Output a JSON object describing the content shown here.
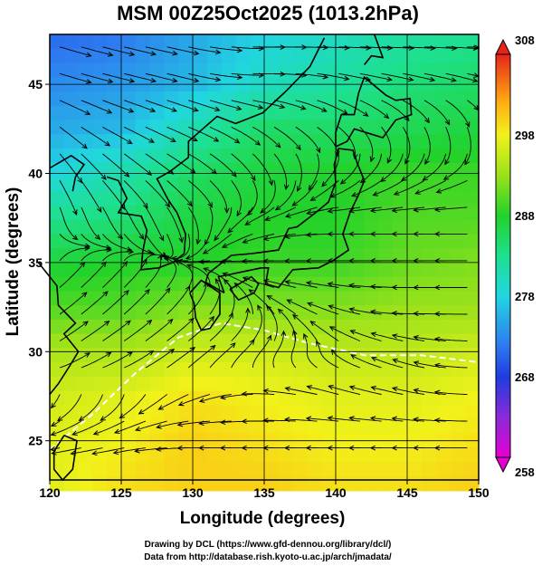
{
  "chart_data": {
    "type": "heatmap",
    "title": "MSM 00Z25Oct2025 (1013.2hPa)",
    "xlabel": "Longitude (degrees)",
    "ylabel": "Latitude  (degrees)",
    "xlim": [
      120,
      150
    ],
    "ylim": [
      22.8,
      47.8
    ],
    "x_ticks": [
      120,
      125,
      130,
      135,
      140,
      145,
      150
    ],
    "y_ticks": [
      25,
      30,
      35,
      40,
      45
    ],
    "grid": true,
    "colorbar": {
      "min": 258,
      "max": 308,
      "tick_values": [
        258,
        268,
        278,
        288,
        298,
        308
      ],
      "tick_labels": [
        "258",
        "268",
        "278",
        "288",
        "298",
        "308"
      ],
      "stops": [
        {
          "v": 258,
          "color": "#e600d2"
        },
        {
          "v": 263,
          "color": "#8a2ad8"
        },
        {
          "v": 268,
          "color": "#1f3ce0"
        },
        {
          "v": 272,
          "color": "#2e7cf0"
        },
        {
          "v": 278,
          "color": "#21d6e0"
        },
        {
          "v": 283,
          "color": "#1ee08e"
        },
        {
          "v": 288,
          "color": "#22d22a"
        },
        {
          "v": 293,
          "color": "#9ae21a"
        },
        {
          "v": 298,
          "color": "#f2f21a"
        },
        {
          "v": 302,
          "color": "#ffae12"
        },
        {
          "v": 308,
          "color": "#e8241a"
        }
      ]
    },
    "temperature_field_K": {
      "note_units": "K",
      "lon": [
        120,
        125,
        130,
        135,
        140,
        145,
        150
      ],
      "lat": [
        47.5,
        45,
        42.5,
        40,
        37.5,
        35,
        32.5,
        30,
        27.5,
        25,
        22.8
      ],
      "values": [
        [
          271,
          272,
          275,
          278,
          280,
          282,
          283
        ],
        [
          273,
          274,
          276,
          280,
          282,
          284,
          285
        ],
        [
          275,
          276,
          281,
          285,
          285,
          286,
          287
        ],
        [
          278,
          281,
          285,
          287,
          288,
          289,
          289
        ],
        [
          283,
          284,
          287,
          288,
          288,
          290,
          290
        ],
        [
          287,
          288,
          288,
          289,
          289,
          291,
          292
        ],
        [
          290,
          290,
          292,
          292,
          292,
          293,
          293
        ],
        [
          294,
          294,
          296,
          296,
          295,
          295,
          296
        ],
        [
          296,
          297,
          299,
          298,
          297,
          297,
          298
        ],
        [
          297,
          298,
          300,
          299,
          298,
          298,
          299
        ],
        [
          297,
          299,
          300,
          300,
          299,
          299,
          300
        ]
      ]
    },
    "wind_field": {
      "description": "streamlines, lower-level flow",
      "lon": [
        120,
        125,
        130,
        135,
        140,
        145,
        150
      ],
      "lat": [
        47.5,
        45,
        42.5,
        40,
        37.5,
        35,
        32.5,
        30,
        27.5,
        25,
        22.8
      ],
      "u": [
        [
          4,
          5,
          6,
          6,
          6,
          5,
          4
        ],
        [
          4,
          5,
          5,
          6,
          5,
          5,
          4
        ],
        [
          3,
          5,
          6,
          4,
          3,
          2,
          1
        ],
        [
          2,
          4,
          5,
          2,
          -2,
          -3,
          -2
        ],
        [
          1,
          2,
          1,
          -3,
          -4,
          -5,
          -5
        ],
        [
          2,
          1,
          -1,
          -3,
          -5,
          -6,
          -6
        ],
        [
          5,
          4,
          2,
          -1,
          -4,
          -6,
          -6
        ],
        [
          6,
          6,
          5,
          2,
          -1,
          -4,
          -5
        ],
        [
          -2,
          -1,
          -3,
          -4,
          -5,
          -6,
          -6
        ],
        [
          -5,
          -5,
          -5,
          -6,
          -6,
          -6,
          -6
        ],
        [
          -5,
          -5,
          -6,
          -6,
          -6,
          -6,
          -6
        ]
      ],
      "v": [
        [
          -1,
          -1,
          -1,
          0,
          0,
          0,
          0
        ],
        [
          -1,
          -1,
          -1,
          0,
          -1,
          -1,
          -1
        ],
        [
          -2,
          -2,
          -2,
          -2,
          -2,
          -3,
          -3
        ],
        [
          -3,
          -3,
          -3,
          -3,
          -2,
          -2,
          -1
        ],
        [
          -3,
          -3,
          -2,
          -1,
          0,
          0,
          0
        ],
        [
          2,
          1,
          0,
          0,
          0,
          0,
          0
        ],
        [
          3,
          3,
          2,
          1,
          1,
          0,
          0
        ],
        [
          3,
          3,
          3,
          2,
          1,
          1,
          0
        ],
        [
          -3,
          -2,
          -1,
          0,
          1,
          1,
          0
        ],
        [
          -1,
          -1,
          0,
          0,
          0,
          0,
          0
        ],
        [
          0,
          0,
          0,
          0,
          0,
          0,
          0
        ]
      ]
    },
    "contour_293K_note": "white dashed isotherm"
  },
  "footer": {
    "line1": "Drawing by DCL (https://www.gfd-dennou.org/library/dcl/)",
    "line2": "Data from http://database.rish.kyoto-u.ac.jp/arch/jmadata/"
  },
  "colors": {
    "frame": "#000000",
    "grid": "#000000",
    "coast": "#000000",
    "stream": "#000000",
    "contour": "#ffffff"
  }
}
